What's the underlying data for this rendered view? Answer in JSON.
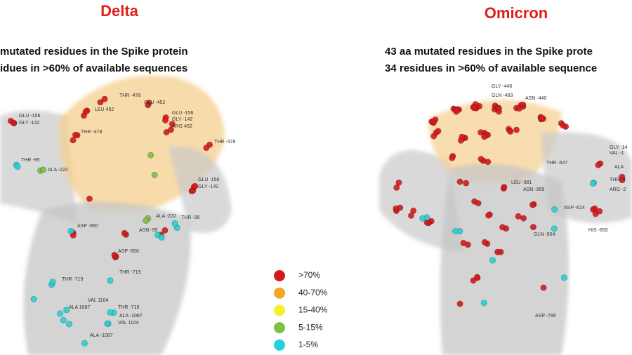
{
  "panels": [
    {
      "title": "Delta",
      "subtitle": [
        "mutated residues in the Spike protein",
        "idues in >60% of available sequences"
      ],
      "residues": [
        "THR -478",
        "LEU 452",
        "GLU -452",
        "GLU -156",
        "GLY -142",
        "GLU -156",
        "GLY -142",
        "ARG 452",
        "THR -478",
        "THR -478",
        "GLU -156",
        "GLY -142",
        "THR -95",
        "ALA -222",
        "GLU -156",
        "GLY -142",
        "ALA -222",
        "ASP -950",
        "ASN -95",
        "THR -95",
        "ASP -950",
        "THR -719",
        "THR -719",
        "VAL 1104",
        "ALA 1087",
        "THR -719",
        "ALA -1087",
        "VAL 1104",
        "ALA -1087"
      ]
    },
    {
      "title": "Omicron",
      "subtitle": [
        "43 aa mutated residues in the Spike prote",
        "34 residues in >60% of available sequence"
      ],
      "residues": [
        "GLY -446",
        "GLN -493",
        "ASN -440",
        "THR -547",
        "LEU -981",
        "ASN -969",
        "ASP -614",
        "ARG -2",
        "GLN -954",
        "HIS -655",
        "ASP -796",
        "GLY -14",
        "VAL -1",
        "ALA",
        "THR -9"
      ]
    }
  ],
  "legend": [
    {
      "label": ">70%",
      "color": "#d7191c"
    },
    {
      "label": "40-70%",
      "color": "#f5a623"
    },
    {
      "label": "15-40%",
      "color": "#f7f12a"
    },
    {
      "label": "5-15%",
      "color": "#7cc243"
    },
    {
      "label": "1-5%",
      "color": "#22d3d8"
    }
  ]
}
